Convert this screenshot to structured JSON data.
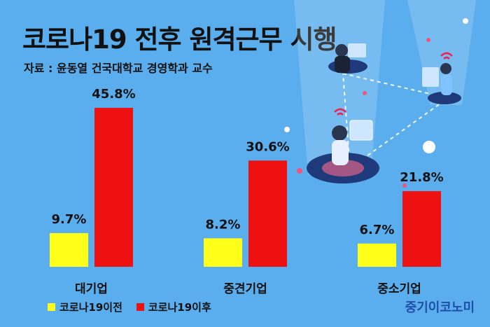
{
  "title": "코로나19 전후 원격근무 시행",
  "source": "자료 : 윤동열 건국대학교 경영학과 교수",
  "brand": "중기이코노미",
  "colors": {
    "before": "#ffff1a",
    "after": "#ee1111",
    "background": "#5aaeee"
  },
  "chart_data": {
    "type": "bar",
    "categories": [
      "대기업",
      "중견기업",
      "중소기업"
    ],
    "series": [
      {
        "name": "코로나19이전",
        "values": [
          9.7,
          8.2,
          6.7
        ],
        "labels": [
          "9.7%",
          "8.2%",
          "6.7%"
        ]
      },
      {
        "name": "코로나19이후",
        "values": [
          45.8,
          30.6,
          21.8
        ],
        "labels": [
          "45.8%",
          "30.6%",
          "21.8%"
        ]
      }
    ],
    "unit": "%",
    "legend_position": "bottom-left"
  }
}
